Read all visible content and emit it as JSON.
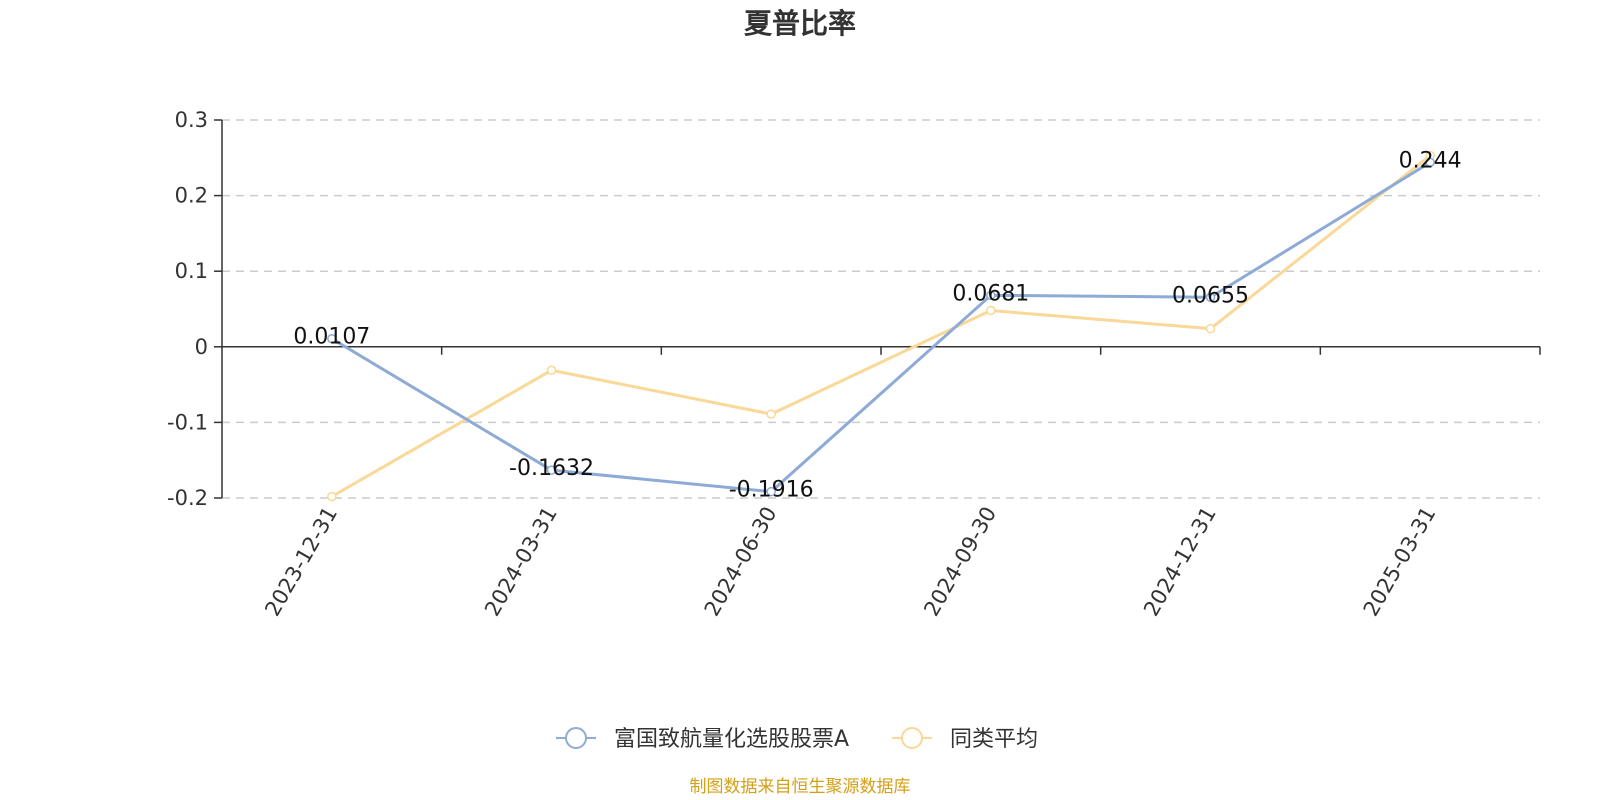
{
  "title": "夏普比率",
  "source": "制图数据来自恒生聚源数据库",
  "colors": {
    "fund": "#8eaad6",
    "peer": "#f9d898",
    "source": "#d4a017",
    "axis": "#333333",
    "grid": "#cccccc"
  },
  "chart_data": {
    "type": "line",
    "title": "夏普比率",
    "categories": [
      "2023-12-31",
      "2024-03-31",
      "2024-06-30",
      "2024-09-30",
      "2024-12-31",
      "2025-03-31"
    ],
    "ylim": [
      -0.2,
      0.3
    ],
    "yticks": [
      0.3,
      0.2,
      0.1,
      0,
      -0.1,
      -0.2
    ],
    "ytick_labels": [
      "0.3",
      "0.2",
      "0.1",
      "0",
      "-0.1",
      "-0.2"
    ],
    "grid": true,
    "legend_position": "bottom-center",
    "series": [
      {
        "name": "富国致航量化选股股票A",
        "values": [
          0.0107,
          -0.1632,
          -0.1916,
          0.0681,
          0.0655,
          0.244
        ],
        "labels": [
          "0.0107",
          "-0.1632",
          "-0.1916",
          "0.0681",
          "0.0655",
          "0.244"
        ],
        "color": "#8eaad6"
      },
      {
        "name": "同类平均",
        "values": [
          -0.198,
          -0.031,
          -0.089,
          0.048,
          0.024,
          0.253
        ],
        "color": "#f9d898"
      }
    ]
  }
}
